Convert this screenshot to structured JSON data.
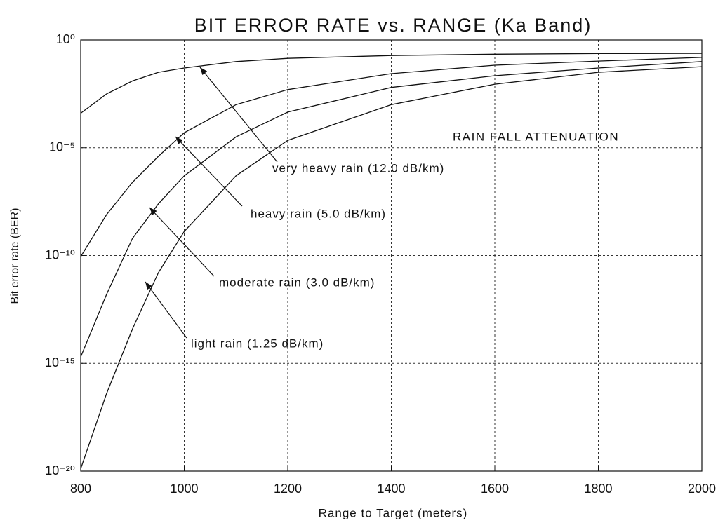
{
  "chart_data": {
    "type": "line",
    "title": "BIT ERROR RATE vs. RANGE (Ka Band)",
    "xlabel": "Range to Target (meters)",
    "ylabel": "Bit error rate (BER)",
    "x": [
      800,
      850,
      900,
      950,
      1000,
      1100,
      1200,
      1400,
      1600,
      1800,
      2000
    ],
    "series": [
      {
        "name": "very heavy rain (12.0 dB/km)",
        "color": "#111111",
        "values": [
          0.0004,
          0.00316,
          0.0126,
          0.0316,
          0.05,
          0.1,
          0.141,
          0.19,
          0.219,
          0.234,
          0.24
        ]
      },
      {
        "name": "heavy rain (5.0 dB/km)",
        "color": "#111111",
        "values": [
          8.9e-11,
          8e-09,
          2.5e-07,
          4e-06,
          5e-05,
          0.001,
          0.005,
          0.0275,
          0.0676,
          0.105,
          0.155
        ]
      },
      {
        "name": "moderate rain (3.0 dB/km)",
        "color": "#111111",
        "values": [
          2e-15,
          1.6e-12,
          6.3e-10,
          2.5e-08,
          5e-07,
          3.2e-05,
          0.00045,
          0.0063,
          0.022,
          0.05,
          0.1
        ]
      },
      {
        "name": "light rain (1.25 dB/km)",
        "color": "#111111",
        "values": [
          1.3e-20,
          4e-17,
          4e-14,
          1.6e-11,
          1.3e-09,
          5e-07,
          2.2e-05,
          0.001,
          0.0089,
          0.0316,
          0.0575
        ]
      }
    ],
    "annotation": "RAIN FALL ATTENUATION",
    "xlim": [
      800,
      2000
    ],
    "xticks": [
      800,
      1000,
      1200,
      1400,
      1600,
      1800,
      2000
    ],
    "ylim": [
      1e-20,
      1
    ],
    "yscale": "log",
    "yticks": [
      {
        "value": 1,
        "label": "10⁰"
      },
      {
        "value": 1e-05,
        "label": "10⁻⁵"
      },
      {
        "value": 1e-10,
        "label": "10⁻¹⁰"
      },
      {
        "value": 1e-15,
        "label": "10⁻¹⁵"
      },
      {
        "value": 1e-20,
        "label": "10⁻²⁰"
      }
    ],
    "grid": true
  }
}
